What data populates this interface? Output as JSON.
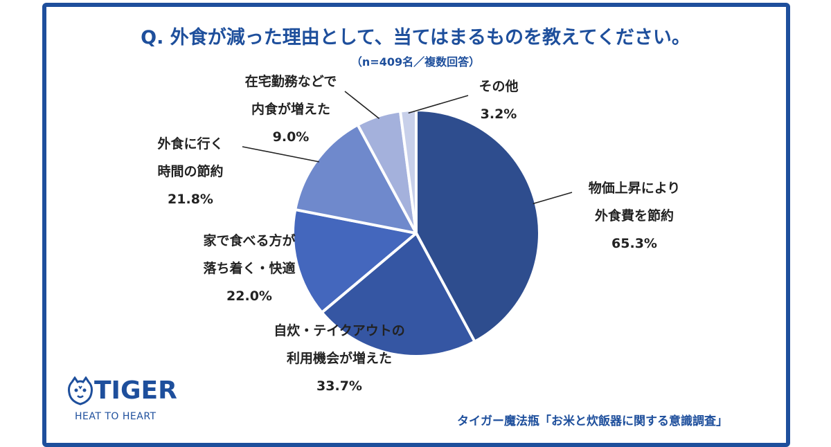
{
  "chart_data": {
    "type": "pie",
    "title": "Q. 外食が減った理由として、当てはまるものを教えてください。",
    "subtitle": "（n=409名／複数回答）",
    "slices": [
      {
        "lines": [
          "物価上昇により",
          "外食費を節約"
        ],
        "value": "65.3%",
        "share": 65.3,
        "color": "#2e4d8e"
      },
      {
        "lines": [
          "自炊・テイクアウトの",
          "利用機会が増えた"
        ],
        "value": "33.7%",
        "share": 33.7,
        "color": "#3556a3"
      },
      {
        "lines": [
          "家で食べる方が",
          "落ち着く・快適"
        ],
        "value": "22.0%",
        "share": 22.0,
        "color": "#4467bd"
      },
      {
        "lines": [
          "外食に行く",
          "時間の節約"
        ],
        "value": "21.8%",
        "share": 21.8,
        "color": "#6f89cc"
      },
      {
        "lines": [
          "在宅勤務などで",
          "内食が増えた"
        ],
        "value": "9.0%",
        "share": 9.0,
        "color": "#a4b1dc"
      },
      {
        "lines": [
          "その他"
        ],
        "value": "3.2%",
        "share": 3.2,
        "color": "#c8d0ea"
      }
    ]
  },
  "brand": {
    "logo_text": "TIGER",
    "tagline": "HEAT TO HEART",
    "color": "#1e4f9c",
    "icon": "tiger-face-icon"
  },
  "source": "タイガー魔法瓶「お米と炊飯器に関する意識調査」"
}
